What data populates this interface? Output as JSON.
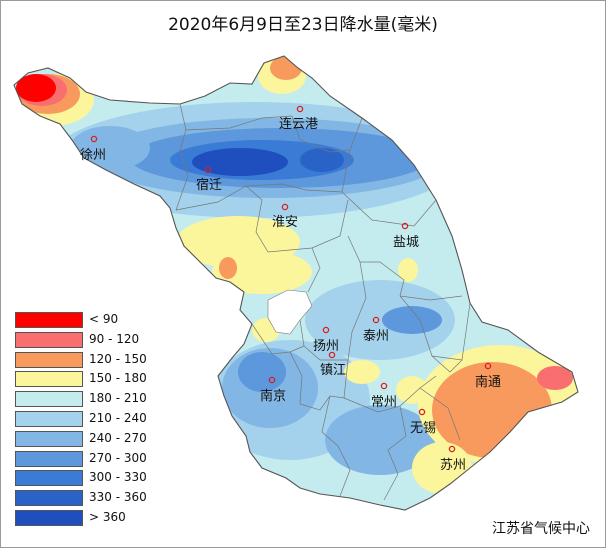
{
  "title": "2020年6月9日至23日降水量(毫米)",
  "source": "江苏省气候中心",
  "legend": [
    {
      "label": "< 90",
      "color": "#ff0000"
    },
    {
      "label": "90 - 120",
      "color": "#f96e6e"
    },
    {
      "label": "120 - 150",
      "color": "#f89a5e"
    },
    {
      "label": "150 - 180",
      "color": "#fbf59b"
    },
    {
      "label": "180 - 210",
      "color": "#c4ecef"
    },
    {
      "label": "210 - 240",
      "color": "#a4d2ec"
    },
    {
      "label": "240 - 270",
      "color": "#82b6e4"
    },
    {
      "label": "270 - 300",
      "color": "#5d97dc"
    },
    {
      "label": "300 - 330",
      "color": "#3a7bd5"
    },
    {
      "label": "330 - 360",
      "color": "#2a63c8"
    },
    {
      "label": "> 360",
      "color": "#1f4fbf"
    }
  ],
  "cities": [
    {
      "name": "连云港"
    },
    {
      "name": "徐州"
    },
    {
      "name": "宿迁"
    },
    {
      "name": "淮安"
    },
    {
      "name": "盐城"
    },
    {
      "name": "扬州"
    },
    {
      "name": "泰州"
    },
    {
      "name": "镇江"
    },
    {
      "name": "南京"
    },
    {
      "name": "常州"
    },
    {
      "name": "南通"
    },
    {
      "name": "无锡"
    },
    {
      "name": "苏州"
    }
  ]
}
